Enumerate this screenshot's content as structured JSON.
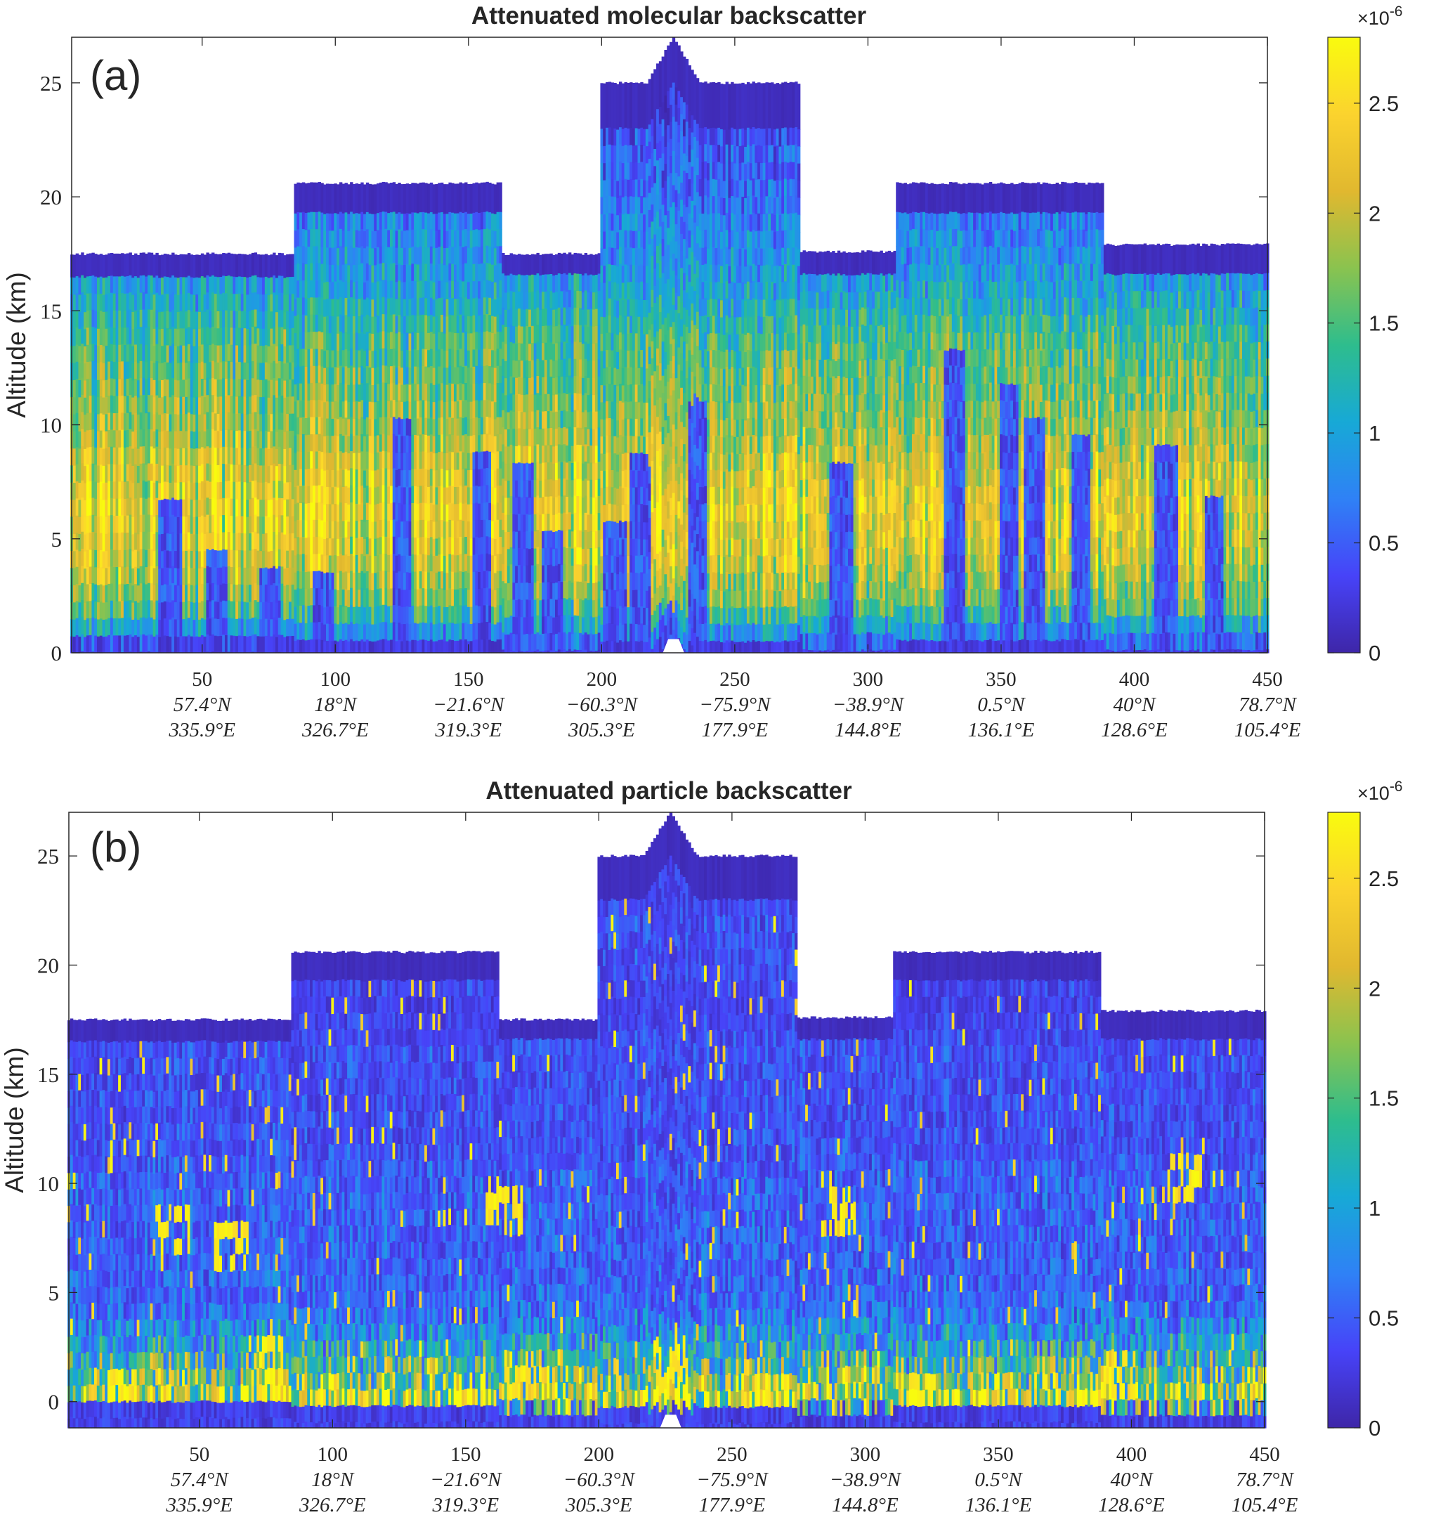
{
  "colormap": [
    "#3e26a8",
    "#4743f8",
    "#2f81f6",
    "#17a9d6",
    "#2ebd8d",
    "#8ac34f",
    "#e1b82f",
    "#fbd32e",
    "#f9fb0e"
  ],
  "chart_data": [
    {
      "type": "heatmap",
      "panel_label": "(a)",
      "title": "Attenuated molecular backscatter",
      "xlabel": "",
      "ylabel": "Altitude (km)",
      "xlim": [
        1,
        450
      ],
      "ylim": [
        0,
        27
      ],
      "y_ticks": [
        "0",
        "5",
        "10",
        "15",
        "20",
        "25"
      ],
      "y_tick_values": [
        0,
        5,
        10,
        15,
        20,
        25
      ],
      "x_tick_values": [
        50,
        100,
        150,
        200,
        250,
        300,
        350,
        400,
        450
      ],
      "x_ticks": [
        {
          "profile": "50",
          "lat": "57.4°N",
          "lon": "335.9°E"
        },
        {
          "profile": "100",
          "lat": "18°N",
          "lon": "326.7°E"
        },
        {
          "profile": "150",
          "lat": "−21.6°N",
          "lon": "319.3°E"
        },
        {
          "profile": "200",
          "lat": "−60.3°N",
          "lon": "305.3°E"
        },
        {
          "profile": "250",
          "lat": "−75.9°N",
          "lon": "177.9°E"
        },
        {
          "profile": "300",
          "lat": "−38.9°N",
          "lon": "144.8°E"
        },
        {
          "profile": "350",
          "lat": "0.5°N",
          "lon": "136.1°E"
        },
        {
          "profile": "400",
          "lat": "40°N",
          "lon": "128.6°E"
        },
        {
          "profile": "450",
          "lat": "78.7°N",
          "lon": "105.4°E"
        }
      ],
      "colorbar": {
        "exponent_label": "×10",
        "exponent_power": "-6",
        "clim": [
          0,
          2.8
        ],
        "ticks": [
          "0",
          "0.5",
          "1",
          "1.5",
          "2",
          "2.5"
        ],
        "tick_values": [
          0,
          0.5,
          1,
          1.5,
          2,
          2.5
        ]
      },
      "segments": [
        {
          "x0": 1,
          "x1": 84,
          "top": 17.5,
          "band_bottom": 16.5
        },
        {
          "x0": 84,
          "x1": 162,
          "top": 20.6,
          "band_bottom": 19.3
        },
        {
          "x0": 162,
          "x1": 199,
          "top": 17.5,
          "band_bottom": 16.6
        },
        {
          "x0": 199,
          "x1": 274,
          "top": 25.0,
          "band_bottom": 23.0
        },
        {
          "x0": 274,
          "x1": 310,
          "top": 17.6,
          "band_bottom": 16.6
        },
        {
          "x0": 310,
          "x1": 388,
          "top": 20.6,
          "band_bottom": 19.3
        },
        {
          "x0": 388,
          "x1": 450,
          "top": 17.9,
          "band_bottom": 16.6
        }
      ],
      "peak": {
        "x": 227,
        "top": 27.0
      },
      "profiles_vs_altitude": {
        "altitude_km": [
          0,
          2,
          4,
          6,
          8,
          10,
          12,
          14,
          16,
          18,
          20,
          22,
          24
        ],
        "mean_value": [
          0.3,
          1.6,
          2.1,
          2.3,
          2.1,
          1.8,
          1.6,
          1.4,
          1.0,
          0.8,
          0.6,
          0.5,
          0.3
        ]
      },
      "cloud_columns": [
        {
          "x": 38,
          "height": 6.5
        },
        {
          "x": 55,
          "height": 4.5
        },
        {
          "x": 75,
          "height": 4
        },
        {
          "x": 95,
          "height": 3.5
        },
        {
          "x": 125,
          "height": 10
        },
        {
          "x": 155,
          "height": 8.5
        },
        {
          "x": 170,
          "height": 8
        },
        {
          "x": 182,
          "height": 5.5
        },
        {
          "x": 205,
          "height": 6
        },
        {
          "x": 215,
          "height": 8.5
        },
        {
          "x": 225,
          "height": 2
        },
        {
          "x": 236,
          "height": 11
        },
        {
          "x": 290,
          "height": 8.5
        },
        {
          "x": 333,
          "height": 13.5
        },
        {
          "x": 353,
          "height": 12
        },
        {
          "x": 363,
          "height": 10
        },
        {
          "x": 380,
          "height": 9.5
        },
        {
          "x": 412,
          "height": 9
        },
        {
          "x": 430,
          "height": 7
        }
      ]
    },
    {
      "type": "heatmap",
      "panel_label": "(b)",
      "title": "Attenuated particle backscatter",
      "xlabel": "",
      "ylabel": "Altitude (km)",
      "xlim": [
        1,
        450
      ],
      "ylim": [
        -1.2,
        27
      ],
      "y_ticks": [
        "0",
        "5",
        "10",
        "15",
        "20",
        "25"
      ],
      "y_tick_values": [
        0,
        5,
        10,
        15,
        20,
        25
      ],
      "x_tick_values": [
        50,
        100,
        150,
        200,
        250,
        300,
        350,
        400,
        450
      ],
      "x_ticks": [
        {
          "profile": "50",
          "lat": "57.4°N",
          "lon": "335.9°E"
        },
        {
          "profile": "100",
          "lat": "18°N",
          "lon": "326.7°E"
        },
        {
          "profile": "150",
          "lat": "−21.6°N",
          "lon": "319.3°E"
        },
        {
          "profile": "200",
          "lat": "−60.3°N",
          "lon": "305.3°E"
        },
        {
          "profile": "250",
          "lat": "−75.9°N",
          "lon": "177.9°E"
        },
        {
          "profile": "300",
          "lat": "−38.9°N",
          "lon": "144.8°E"
        },
        {
          "profile": "350",
          "lat": "0.5°N",
          "lon": "136.1°E"
        },
        {
          "profile": "400",
          "lat": "40°N",
          "lon": "128.6°E"
        },
        {
          "profile": "450",
          "lat": "78.7°N",
          "lon": "105.4°E"
        }
      ],
      "colorbar": {
        "exponent_label": "×10",
        "exponent_power": "-6",
        "clim": [
          0,
          2.8
        ],
        "ticks": [
          "0",
          "0.5",
          "1",
          "1.5",
          "2",
          "2.5"
        ],
        "tick_values": [
          0,
          0.5,
          1,
          1.5,
          2,
          2.5
        ]
      },
      "segments": [
        {
          "x0": 1,
          "x1": 84,
          "top": 17.5,
          "band_bottom": 16.5
        },
        {
          "x0": 84,
          "x1": 162,
          "top": 20.6,
          "band_bottom": 19.3
        },
        {
          "x0": 162,
          "x1": 199,
          "top": 17.5,
          "band_bottom": 16.6
        },
        {
          "x0": 199,
          "x1": 274,
          "top": 25.0,
          "band_bottom": 23.0
        },
        {
          "x0": 274,
          "x1": 310,
          "top": 17.6,
          "band_bottom": 16.6
        },
        {
          "x0": 310,
          "x1": 388,
          "top": 20.6,
          "band_bottom": 19.3
        },
        {
          "x0": 388,
          "x1": 450,
          "top": 17.9,
          "band_bottom": 16.6
        }
      ],
      "peak": {
        "x": 227,
        "top": 27.0
      },
      "profiles_vs_altitude": {
        "altitude_km": [
          -1,
          0,
          2,
          4,
          6,
          8,
          10,
          12,
          14,
          16,
          18,
          20,
          22,
          24
        ],
        "mean_value": [
          0.3,
          2.2,
          1.2,
          0.6,
          0.5,
          0.5,
          0.5,
          0.4,
          0.4,
          0.4,
          0.3,
          0.4,
          0.4,
          0.3
        ]
      },
      "bright_features": [
        {
          "x": 40,
          "altitude": 8
        },
        {
          "x": 62,
          "altitude": 7
        },
        {
          "x": 165,
          "altitude": 9
        },
        {
          "x": 290,
          "altitude": 9
        },
        {
          "x": 420,
          "altitude": 10
        },
        {
          "x": 20,
          "altitude": 0
        },
        {
          "x": 75,
          "altitude": 1.5
        },
        {
          "x": 170,
          "altitude": 1
        },
        {
          "x": 227,
          "altitude": 1.5
        },
        {
          "x": 265,
          "altitude": 0
        },
        {
          "x": 320,
          "altitude": 0
        },
        {
          "x": 395,
          "altitude": 1
        }
      ]
    }
  ]
}
